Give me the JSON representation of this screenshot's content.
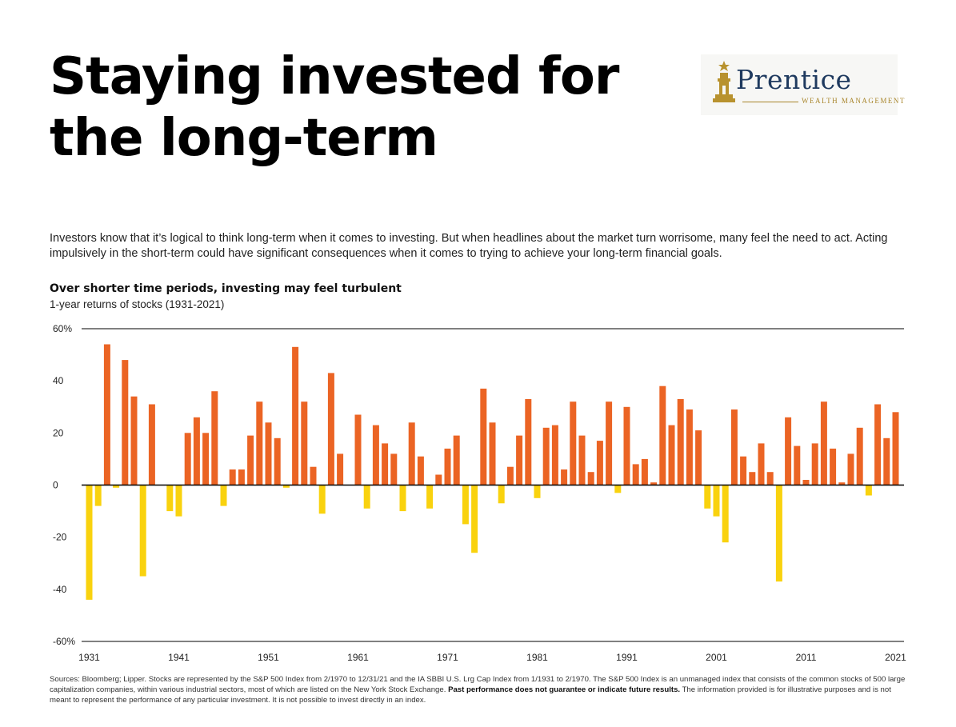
{
  "header": {
    "title": "Staying invested for the long-term",
    "logo_name": "Prentice",
    "logo_tagline": "WEALTH MANAGEMENT",
    "intro": "Investors know that it’s logical to think long-term when it comes to investing. But when headlines about the market turn worrisome, many feel the need to act. Acting impulsively in the short-term could have significant consequences when it comes to trying to achieve your long-term financial goals."
  },
  "chart_data": {
    "type": "bar",
    "title": "Over shorter time periods, investing may feel turbulent",
    "subtitle": "1-year returns of stocks (1931-2021)",
    "xlabel": "",
    "ylabel": "",
    "ylim": [
      -60,
      60
    ],
    "y_ticks": [
      60,
      40,
      20,
      0,
      -20,
      -40,
      -60
    ],
    "y_tick_labels": [
      "60%",
      "40",
      "20",
      "0",
      "-20",
      "-40",
      "-60%"
    ],
    "x_tick_labels": [
      "1931",
      "1941",
      "1951",
      "1961",
      "1971",
      "1981",
      "1991",
      "2001",
      "2011",
      "2021"
    ],
    "grid": false,
    "colors": {
      "positive": "#eb6424",
      "negative": "#f9d20e",
      "axis": "#000000"
    },
    "categories": [
      1931,
      1932,
      1933,
      1934,
      1935,
      1936,
      1937,
      1938,
      1939,
      1940,
      1941,
      1942,
      1943,
      1944,
      1945,
      1946,
      1947,
      1948,
      1949,
      1950,
      1951,
      1952,
      1953,
      1954,
      1955,
      1956,
      1957,
      1958,
      1959,
      1960,
      1961,
      1962,
      1963,
      1964,
      1965,
      1966,
      1967,
      1968,
      1969,
      1970,
      1971,
      1972,
      1973,
      1974,
      1975,
      1976,
      1977,
      1978,
      1979,
      1980,
      1981,
      1982,
      1983,
      1984,
      1985,
      1986,
      1987,
      1988,
      1989,
      1990,
      1991,
      1992,
      1993,
      1994,
      1995,
      1996,
      1997,
      1998,
      1999,
      2000,
      2001,
      2002,
      2003,
      2004,
      2005,
      2006,
      2007,
      2008,
      2009,
      2010,
      2011,
      2012,
      2013,
      2014,
      2015,
      2016,
      2017,
      2018,
      2019,
      2020,
      2021
    ],
    "values": [
      -44,
      -8,
      54,
      -1,
      48,
      34,
      -35,
      31,
      0,
      -10,
      -12,
      20,
      26,
      20,
      36,
      -8,
      6,
      6,
      19,
      32,
      24,
      18,
      -1,
      53,
      32,
      7,
      -11,
      43,
      12,
      0,
      27,
      -9,
      23,
      16,
      12,
      -10,
      24,
      11,
      -9,
      4,
      14,
      19,
      -15,
      -26,
      37,
      24,
      -7,
      7,
      19,
      33,
      -5,
      22,
      23,
      6,
      32,
      19,
      5,
      17,
      32,
      -3,
      30,
      8,
      10,
      1,
      38,
      23,
      33,
      29,
      21,
      -9,
      -12,
      -22,
      29,
      11,
      5,
      16,
      5,
      -37,
      26,
      15,
      2,
      16,
      32,
      14,
      1,
      12,
      22,
      -4,
      31,
      18,
      28
    ]
  },
  "footer": {
    "sources_a": "Sources: Bloomberg; Lipper. Stocks are represented by the S&P 500 Index from 2/1970 to 12/31/21 and the IA SBBI U.S. Lrg Cap Index from 1/1931 to 2/1970. The S&P 500 Index is an unmanaged index that consists of the common stocks of 500 large capitalization companies, within various industrial sectors, most of which are listed on the New York Stock Exchange. ",
    "sources_bold": "Past performance does not guarantee or indicate future results.",
    "sources_b": " The information provided is for illustrative purposes and is not meant to represent the performance of any particular investment. It is not possible to invest directly in an index."
  }
}
